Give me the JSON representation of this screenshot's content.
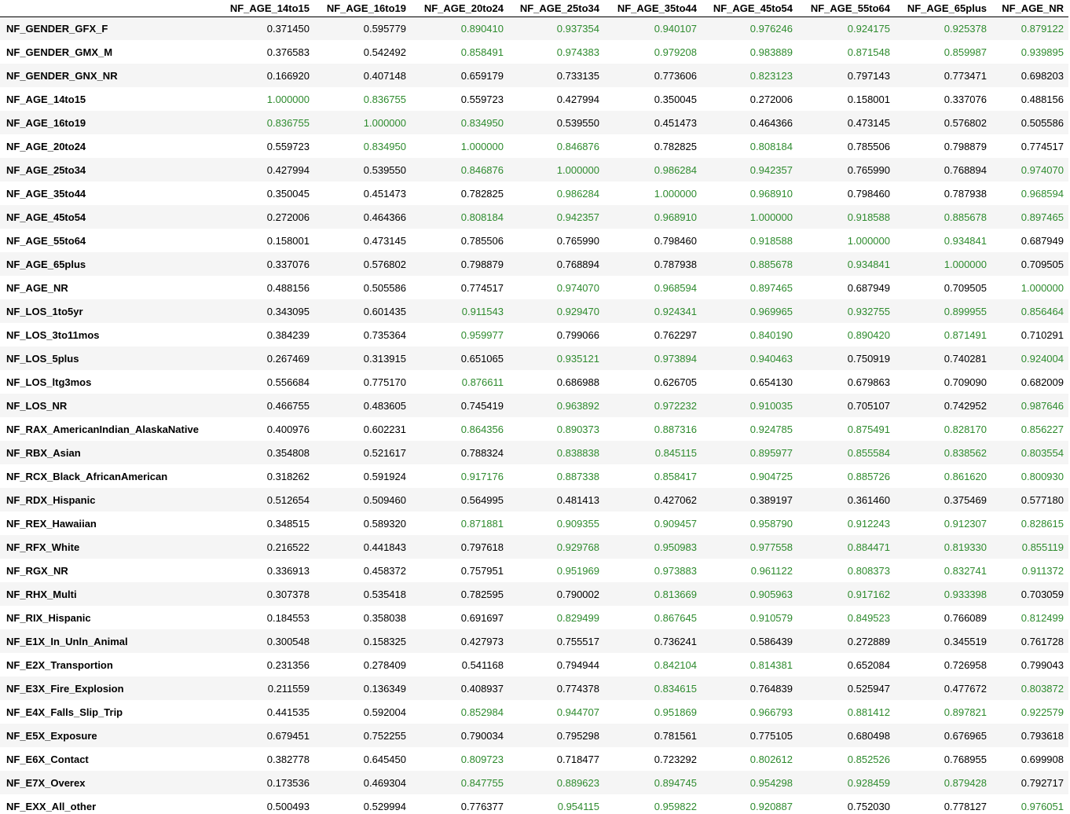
{
  "threshold": 0.8,
  "colors": {
    "high_value": "#2e8b2e",
    "normal_value": "#000000",
    "stripe": "#f5f5f5"
  },
  "columns": [
    "NF_AGE_14to15",
    "NF_AGE_16to19",
    "NF_AGE_20to24",
    "NF_AGE_25to34",
    "NF_AGE_35to44",
    "NF_AGE_45to54",
    "NF_AGE_55to64",
    "NF_AGE_65plus",
    "NF_AGE_NR"
  ],
  "rows": [
    {
      "label": "NF_GENDER_GFX_F",
      "values": [
        "0.371450",
        "0.595779",
        "0.890410",
        "0.937354",
        "0.940107",
        "0.976246",
        "0.924175",
        "0.925378",
        "0.879122"
      ]
    },
    {
      "label": "NF_GENDER_GMX_M",
      "values": [
        "0.376583",
        "0.542492",
        "0.858491",
        "0.974383",
        "0.979208",
        "0.983889",
        "0.871548",
        "0.859987",
        "0.939895"
      ]
    },
    {
      "label": "NF_GENDER_GNX_NR",
      "values": [
        "0.166920",
        "0.407148",
        "0.659179",
        "0.733135",
        "0.773606",
        "0.823123",
        "0.797143",
        "0.773471",
        "0.698203"
      ]
    },
    {
      "label": "NF_AGE_14to15",
      "values": [
        "1.000000",
        "0.836755",
        "0.559723",
        "0.427994",
        "0.350045",
        "0.272006",
        "0.158001",
        "0.337076",
        "0.488156"
      ]
    },
    {
      "label": "NF_AGE_16to19",
      "values": [
        "0.836755",
        "1.000000",
        "0.834950",
        "0.539550",
        "0.451473",
        "0.464366",
        "0.473145",
        "0.576802",
        "0.505586"
      ]
    },
    {
      "label": "NF_AGE_20to24",
      "values": [
        "0.559723",
        "0.834950",
        "1.000000",
        "0.846876",
        "0.782825",
        "0.808184",
        "0.785506",
        "0.798879",
        "0.774517"
      ]
    },
    {
      "label": "NF_AGE_25to34",
      "values": [
        "0.427994",
        "0.539550",
        "0.846876",
        "1.000000",
        "0.986284",
        "0.942357",
        "0.765990",
        "0.768894",
        "0.974070"
      ]
    },
    {
      "label": "NF_AGE_35to44",
      "values": [
        "0.350045",
        "0.451473",
        "0.782825",
        "0.986284",
        "1.000000",
        "0.968910",
        "0.798460",
        "0.787938",
        "0.968594"
      ]
    },
    {
      "label": "NF_AGE_45to54",
      "values": [
        "0.272006",
        "0.464366",
        "0.808184",
        "0.942357",
        "0.968910",
        "1.000000",
        "0.918588",
        "0.885678",
        "0.897465"
      ]
    },
    {
      "label": "NF_AGE_55to64",
      "values": [
        "0.158001",
        "0.473145",
        "0.785506",
        "0.765990",
        "0.798460",
        "0.918588",
        "1.000000",
        "0.934841",
        "0.687949"
      ]
    },
    {
      "label": "NF_AGE_65plus",
      "values": [
        "0.337076",
        "0.576802",
        "0.798879",
        "0.768894",
        "0.787938",
        "0.885678",
        "0.934841",
        "1.000000",
        "0.709505"
      ]
    },
    {
      "label": "NF_AGE_NR",
      "values": [
        "0.488156",
        "0.505586",
        "0.774517",
        "0.974070",
        "0.968594",
        "0.897465",
        "0.687949",
        "0.709505",
        "1.000000"
      ]
    },
    {
      "label": "NF_LOS_1to5yr",
      "values": [
        "0.343095",
        "0.601435",
        "0.911543",
        "0.929470",
        "0.924341",
        "0.969965",
        "0.932755",
        "0.899955",
        "0.856464"
      ]
    },
    {
      "label": "NF_LOS_3to11mos",
      "values": [
        "0.384239",
        "0.735364",
        "0.959977",
        "0.799066",
        "0.762297",
        "0.840190",
        "0.890420",
        "0.871491",
        "0.710291"
      ]
    },
    {
      "label": "NF_LOS_5plus",
      "values": [
        "0.267469",
        "0.313915",
        "0.651065",
        "0.935121",
        "0.973894",
        "0.940463",
        "0.750919",
        "0.740281",
        "0.924004"
      ]
    },
    {
      "label": "NF_LOS_ltg3mos",
      "values": [
        "0.556684",
        "0.775170",
        "0.876611",
        "0.686988",
        "0.626705",
        "0.654130",
        "0.679863",
        "0.709090",
        "0.682009"
      ]
    },
    {
      "label": "NF_LOS_NR",
      "values": [
        "0.466755",
        "0.483605",
        "0.745419",
        "0.963892",
        "0.972232",
        "0.910035",
        "0.705107",
        "0.742952",
        "0.987646"
      ]
    },
    {
      "label": "NF_RAX_AmericanIndian_AlaskaNative",
      "values": [
        "0.400976",
        "0.602231",
        "0.864356",
        "0.890373",
        "0.887316",
        "0.924785",
        "0.875491",
        "0.828170",
        "0.856227"
      ]
    },
    {
      "label": "NF_RBX_Asian",
      "values": [
        "0.354808",
        "0.521617",
        "0.788324",
        "0.838838",
        "0.845115",
        "0.895977",
        "0.855584",
        "0.838562",
        "0.803554"
      ]
    },
    {
      "label": "NF_RCX_Black_AfricanAmerican",
      "values": [
        "0.318262",
        "0.591924",
        "0.917176",
        "0.887338",
        "0.858417",
        "0.904725",
        "0.885726",
        "0.861620",
        "0.800930"
      ]
    },
    {
      "label": "NF_RDX_Hispanic",
      "values": [
        "0.512654",
        "0.509460",
        "0.564995",
        "0.481413",
        "0.427062",
        "0.389197",
        "0.361460",
        "0.375469",
        "0.577180"
      ]
    },
    {
      "label": "NF_REX_Hawaiian",
      "values": [
        "0.348515",
        "0.589320",
        "0.871881",
        "0.909355",
        "0.909457",
        "0.958790",
        "0.912243",
        "0.912307",
        "0.828615"
      ]
    },
    {
      "label": "NF_RFX_White",
      "values": [
        "0.216522",
        "0.441843",
        "0.797618",
        "0.929768",
        "0.950983",
        "0.977558",
        "0.884471",
        "0.819330",
        "0.855119"
      ]
    },
    {
      "label": "NF_RGX_NR",
      "values": [
        "0.336913",
        "0.458372",
        "0.757951",
        "0.951969",
        "0.973883",
        "0.961122",
        "0.808373",
        "0.832741",
        "0.911372"
      ]
    },
    {
      "label": "NF_RHX_Multi",
      "values": [
        "0.307378",
        "0.535418",
        "0.782595",
        "0.790002",
        "0.813669",
        "0.905963",
        "0.917162",
        "0.933398",
        "0.703059"
      ]
    },
    {
      "label": "NF_RIX_Hispanic",
      "values": [
        "0.184553",
        "0.358038",
        "0.691697",
        "0.829499",
        "0.867645",
        "0.910579",
        "0.849523",
        "0.766089",
        "0.812499"
      ]
    },
    {
      "label": "NF_E1X_In_Unln_Animal",
      "values": [
        "0.300548",
        "0.158325",
        "0.427973",
        "0.755517",
        "0.736241",
        "0.586439",
        "0.272889",
        "0.345519",
        "0.761728"
      ]
    },
    {
      "label": "NF_E2X_Transportion",
      "values": [
        "0.231356",
        "0.278409",
        "0.541168",
        "0.794944",
        "0.842104",
        "0.814381",
        "0.652084",
        "0.726958",
        "0.799043"
      ]
    },
    {
      "label": "NF_E3X_Fire_Explosion",
      "values": [
        "0.211559",
        "0.136349",
        "0.408937",
        "0.774378",
        "0.834615",
        "0.764839",
        "0.525947",
        "0.477672",
        "0.803872"
      ]
    },
    {
      "label": "NF_E4X_Falls_Slip_Trip",
      "values": [
        "0.441535",
        "0.592004",
        "0.852984",
        "0.944707",
        "0.951869",
        "0.966793",
        "0.881412",
        "0.897821",
        "0.922579"
      ]
    },
    {
      "label": "NF_E5X_Exposure",
      "values": [
        "0.679451",
        "0.752255",
        "0.790034",
        "0.795298",
        "0.781561",
        "0.775105",
        "0.680498",
        "0.676965",
        "0.793618"
      ]
    },
    {
      "label": "NF_E6X_Contact",
      "values": [
        "0.382778",
        "0.645450",
        "0.809723",
        "0.718477",
        "0.723292",
        "0.802612",
        "0.852526",
        "0.768955",
        "0.699908"
      ]
    },
    {
      "label": "NF_E7X_Overex",
      "values": [
        "0.173536",
        "0.469304",
        "0.847755",
        "0.889623",
        "0.894745",
        "0.954298",
        "0.928459",
        "0.879428",
        "0.792717"
      ]
    },
    {
      "label": "NF_EXX_All_other",
      "values": [
        "0.500493",
        "0.529994",
        "0.776377",
        "0.954115",
        "0.959822",
        "0.920887",
        "0.752030",
        "0.778127",
        "0.976051"
      ]
    }
  ]
}
